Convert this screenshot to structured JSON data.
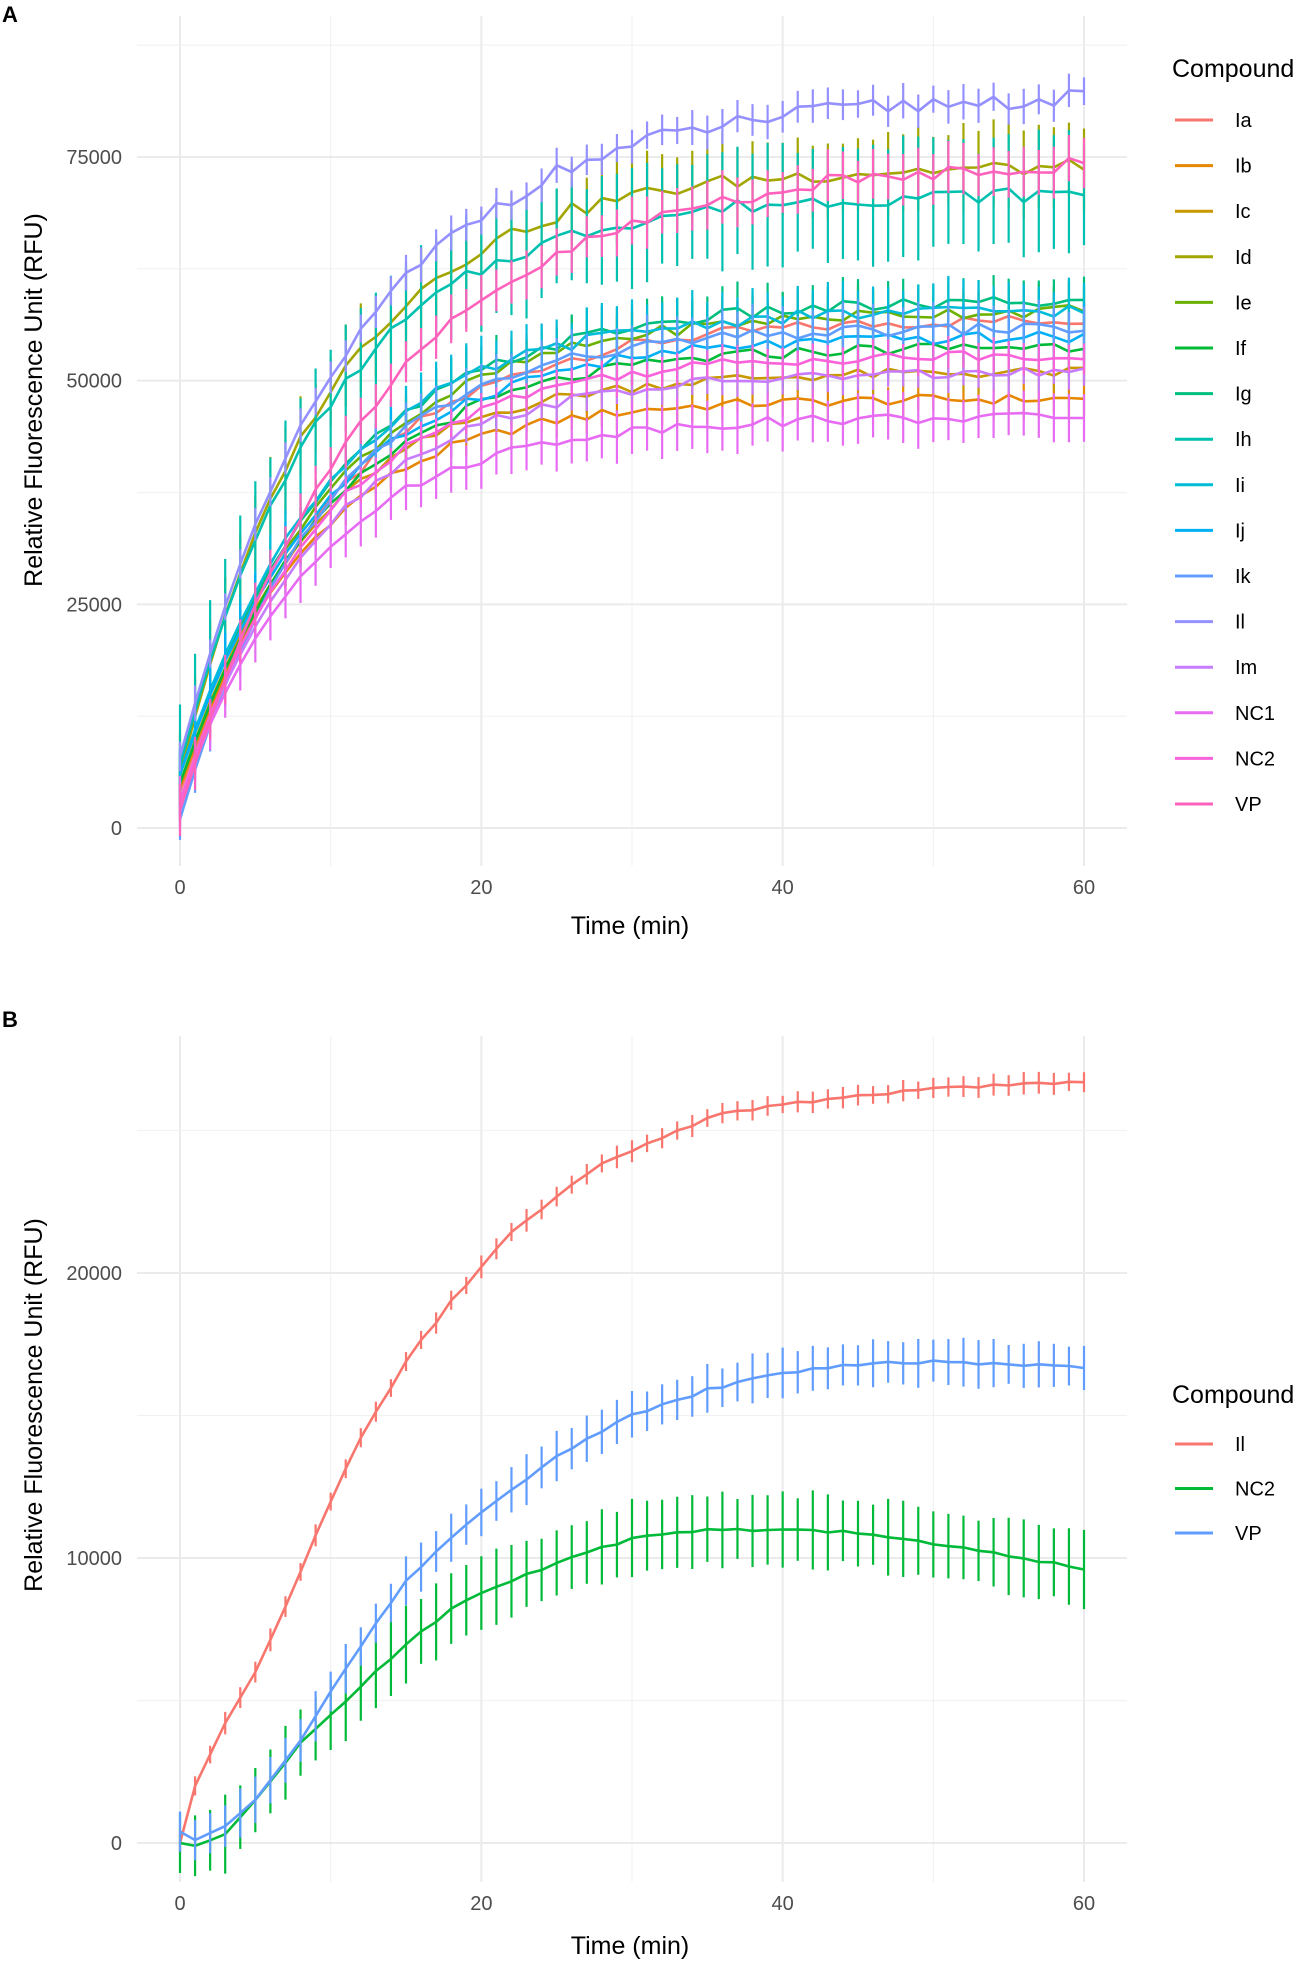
{
  "chart_data": [
    {
      "type": "line",
      "panel_label": "A",
      "title": "",
      "xlabel": "Time (min)",
      "ylabel": "Relative Fluorescence Unit (RFU)",
      "xlim": [
        0,
        60
      ],
      "ylim": [
        0,
        85000
      ],
      "x_ticks": [
        0,
        20,
        40,
        60
      ],
      "x_tick_labels": [
        "0",
        "20",
        "40",
        "60"
      ],
      "y_ticks": [
        0,
        25000,
        50000,
        75000
      ],
      "y_tick_labels": [
        "0",
        "25000",
        "50000",
        "75000"
      ],
      "grid": true,
      "error_bars": true,
      "legend": {
        "title": "Compound",
        "position": "right"
      },
      "series": [
        {
          "name": "Ia",
          "color": "#F8766D",
          "start": 4000,
          "plateau": 57000,
          "k": 0.095,
          "err": 3500
        },
        {
          "name": "Ib",
          "color": "#E58700",
          "start": 4500,
          "plateau": 48000,
          "k": 0.115,
          "err": 2000
        },
        {
          "name": "Ic",
          "color": "#C99800",
          "start": 5000,
          "plateau": 51000,
          "k": 0.11,
          "err": 2000
        },
        {
          "name": "Id",
          "color": "#A3A500",
          "start": 6000,
          "plateau": 74000,
          "k": 0.1,
          "err": 5000
        },
        {
          "name": "Ie",
          "color": "#6BB100",
          "start": 6000,
          "plateau": 58000,
          "k": 0.095,
          "err": 3000
        },
        {
          "name": "If",
          "color": "#00BA38",
          "start": 5000,
          "plateau": 54000,
          "k": 0.1,
          "err": 3500
        },
        {
          "name": "Ig",
          "color": "#00BF7D",
          "start": 6000,
          "plateau": 59000,
          "k": 0.095,
          "err": 3000
        },
        {
          "name": "Ih",
          "color": "#00C0AF",
          "start": 7000,
          "plateau": 71000,
          "k": 0.1,
          "err": 7000
        },
        {
          "name": "Ii",
          "color": "#00BCD8",
          "start": 6000,
          "plateau": 58000,
          "k": 0.1,
          "err": 3500
        },
        {
          "name": "Ij",
          "color": "#00B0F6",
          "start": 6000,
          "plateau": 55000,
          "k": 0.1,
          "err": 3500
        },
        {
          "name": "Ik",
          "color": "#619CFF",
          "start": 1000,
          "plateau": 56000,
          "k": 0.105,
          "err": 3000
        },
        {
          "name": "Il",
          "color": "#9590FF",
          "start": 8000,
          "plateau": 82000,
          "k": 0.085,
          "err": 2000
        },
        {
          "name": "Im",
          "color": "#C77CFF",
          "start": 3000,
          "plateau": 51000,
          "k": 0.105,
          "err": 2000
        },
        {
          "name": "NC1",
          "color": "#E76BF3",
          "start": 3000,
          "plateau": 46000,
          "k": 0.11,
          "err": 3000
        },
        {
          "name": "NC2",
          "color": "#FA62DB",
          "start": 3000,
          "plateau": 53000,
          "k": 0.105,
          "err": 2000
        },
        {
          "name": "VP",
          "color": "#FF62BC",
          "start": 2000,
          "plateau": 75000,
          "k": 0.075,
          "err": 3000
        }
      ]
    },
    {
      "type": "line",
      "panel_label": "B",
      "title": "",
      "xlabel": "Time (min)",
      "ylabel": "Relative Fluorescence Unit (RFU)",
      "xlim": [
        0,
        60
      ],
      "ylim": [
        -500,
        27500
      ],
      "x_ticks": [
        0,
        20,
        40,
        60
      ],
      "x_tick_labels": [
        "0",
        "20",
        "40",
        "60"
      ],
      "y_ticks": [
        0,
        10000,
        20000
      ],
      "y_tick_labels": [
        "0",
        "10000",
        "20000"
      ],
      "grid": true,
      "error_bars": true,
      "legend": {
        "title": "Compound",
        "position": "right"
      },
      "series": [
        {
          "name": "Il",
          "color": "#F8766D",
          "points": [
            [
              0,
              0
            ],
            [
              1,
              2000
            ],
            [
              3,
              4200
            ],
            [
              5,
              6000
            ],
            [
              7,
              8300
            ],
            [
              10,
              12000
            ],
            [
              12,
              14200
            ],
            [
              15,
              16900
            ],
            [
              18,
              19000
            ],
            [
              20,
              20200
            ],
            [
              22,
              21400
            ],
            [
              25,
              22700
            ],
            [
              28,
              23800
            ],
            [
              30,
              24300
            ],
            [
              33,
              25000
            ],
            [
              36,
              25600
            ],
            [
              40,
              25900
            ],
            [
              45,
              26200
            ],
            [
              50,
              26500
            ],
            [
              55,
              26600
            ],
            [
              60,
              26700
            ]
          ],
          "err": 400
        },
        {
          "name": "NC2",
          "color": "#00BA38",
          "points": [
            [
              0,
              0
            ],
            [
              1,
              -100
            ],
            [
              3,
              300
            ],
            [
              5,
              1500
            ],
            [
              8,
              3500
            ],
            [
              10,
              4500
            ],
            [
              12,
              5500
            ],
            [
              15,
              7000
            ],
            [
              18,
              8200
            ],
            [
              20,
              8800
            ],
            [
              25,
              9800
            ],
            [
              30,
              10700
            ],
            [
              35,
              11000
            ],
            [
              40,
              11000
            ],
            [
              45,
              10900
            ],
            [
              50,
              10500
            ],
            [
              55,
              10100
            ],
            [
              60,
              9600
            ]
          ],
          "err": 1400
        },
        {
          "name": "VP",
          "color": "#619CFF",
          "points": [
            [
              0,
              400
            ],
            [
              1,
              100
            ],
            [
              3,
              600
            ],
            [
              5,
              1500
            ],
            [
              8,
              3600
            ],
            [
              10,
              5300
            ],
            [
              13,
              7700
            ],
            [
              15,
              9200
            ],
            [
              18,
              10700
            ],
            [
              20,
              11600
            ],
            [
              25,
              13600
            ],
            [
              30,
              15000
            ],
            [
              35,
              15900
            ],
            [
              40,
              16500
            ],
            [
              45,
              16800
            ],
            [
              50,
              16900
            ],
            [
              55,
              16800
            ],
            [
              60,
              16700
            ]
          ],
          "err": 900
        }
      ]
    }
  ]
}
